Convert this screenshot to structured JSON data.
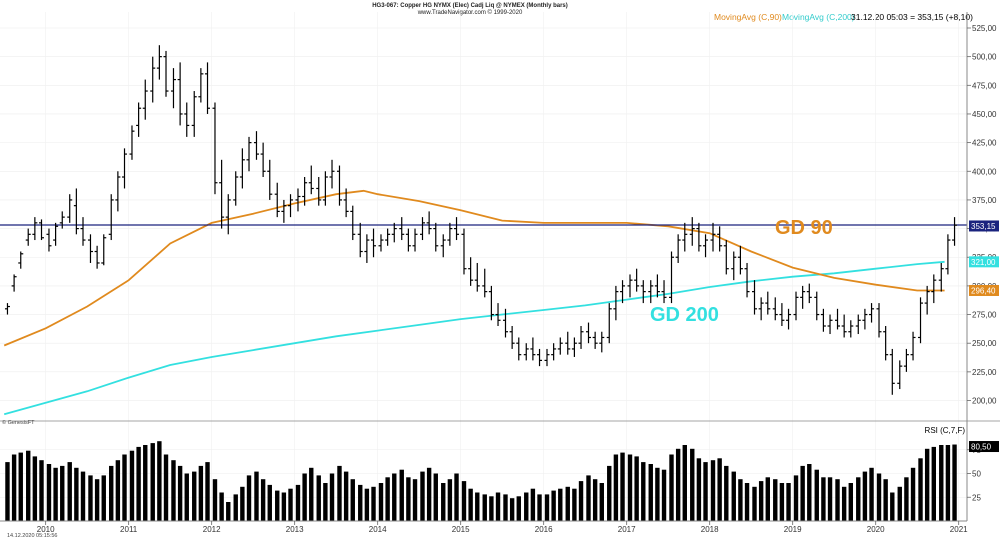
{
  "header": {
    "title": "HG3-067: Copper HG NYMX (Elec) Cadj Liq @ NYMEX (Monthly bars)",
    "source": "www.TradeNavigator.com © 1999-2020"
  },
  "legend": {
    "ma90_label": "MovingAvg (C,90)",
    "ma200_label": "MovingAvg (C,200)",
    "readout": "31.12.20 05:03 = 353,15 (+8,10)"
  },
  "annotations": {
    "gd90": "GD 90",
    "gd200": "GD 200",
    "brand": "© GenesisFT",
    "timestamp": "14.12.2020 05:15:56"
  },
  "colors": {
    "ma90": "#e08a1e",
    "ma200": "#33e0e0",
    "hline": "#1a237e",
    "bars": "#000000",
    "badge_price": "#1a237e",
    "badge_rsi": "#000000"
  },
  "chart_data": [
    {
      "type": "ohlc",
      "series": [
        {
          "name": "MovingAvg (C,90)",
          "x": [
            2009.5,
            2010.0,
            2010.5,
            2011.0,
            2011.5,
            2012.0,
            2012.5,
            2013.0,
            2013.5,
            2013.83,
            2014.0,
            2014.5,
            2015.0,
            2015.5,
            2016.0,
            2016.5,
            2017.0,
            2017.5,
            2018.0,
            2018.5,
            2019.0,
            2019.5,
            2020.0,
            2020.5,
            2020.83
          ],
          "values": [
            248,
            263,
            282,
            305,
            337,
            355,
            363,
            372,
            380,
            383,
            380,
            374,
            366,
            357,
            355,
            355,
            355,
            352,
            346,
            330,
            316,
            307,
            301,
            296,
            296
          ]
        },
        {
          "name": "MovingAvg (C,200)",
          "x": [
            2009.5,
            2010.0,
            2010.5,
            2011.0,
            2011.5,
            2012.0,
            2012.5,
            2013.0,
            2013.5,
            2014.0,
            2014.5,
            2015.0,
            2015.5,
            2016.0,
            2016.5,
            2017.0,
            2017.5,
            2018.0,
            2018.5,
            2019.0,
            2019.5,
            2020.0,
            2020.5,
            2020.83
          ],
          "values": [
            188,
            198,
            208,
            220,
            231,
            238,
            244,
            250,
            256,
            261,
            266,
            271,
            275,
            279,
            283,
            288,
            293,
            299,
            304,
            308,
            311,
            315,
            319,
            321
          ]
        }
      ],
      "bars_values": [
        [
          2009.54,
          280,
          285,
          275,
          282
        ],
        [
          2009.62,
          300,
          310,
          295,
          308
        ],
        [
          2009.7,
          320,
          330,
          315,
          328
        ],
        [
          2009.79,
          340,
          350,
          335,
          345
        ],
        [
          2009.87,
          345,
          360,
          340,
          355
        ],
        [
          2009.95,
          355,
          358,
          340,
          342
        ],
        [
          2010.04,
          345,
          350,
          330,
          335
        ],
        [
          2010.12,
          340,
          355,
          335,
          352
        ],
        [
          2010.2,
          355,
          365,
          350,
          360
        ],
        [
          2010.29,
          360,
          380,
          355,
          375
        ],
        [
          2010.37,
          370,
          385,
          345,
          350
        ],
        [
          2010.45,
          350,
          360,
          335,
          340
        ],
        [
          2010.54,
          340,
          345,
          320,
          330
        ],
        [
          2010.62,
          330,
          335,
          315,
          320
        ],
        [
          2010.7,
          320,
          345,
          318,
          342
        ],
        [
          2010.79,
          345,
          380,
          340,
          375
        ],
        [
          2010.87,
          375,
          400,
          365,
          395
        ],
        [
          2010.95,
          395,
          420,
          385,
          415
        ],
        [
          2011.04,
          415,
          440,
          410,
          435
        ],
        [
          2011.12,
          440,
          460,
          430,
          455
        ],
        [
          2011.2,
          455,
          480,
          445,
          470
        ],
        [
          2011.29,
          470,
          500,
          460,
          490
        ],
        [
          2011.37,
          490,
          510,
          480,
          500
        ],
        [
          2011.45,
          500,
          505,
          465,
          470
        ],
        [
          2011.54,
          470,
          490,
          455,
          480
        ],
        [
          2011.62,
          480,
          495,
          440,
          450
        ],
        [
          2011.7,
          450,
          460,
          430,
          440
        ],
        [
          2011.79,
          440,
          470,
          430,
          465
        ],
        [
          2011.87,
          465,
          490,
          460,
          485
        ],
        [
          2011.95,
          485,
          495,
          450,
          455
        ],
        [
          2012.04,
          455,
          460,
          380,
          390
        ],
        [
          2012.12,
          390,
          410,
          350,
          360
        ],
        [
          2012.2,
          360,
          380,
          345,
          375
        ],
        [
          2012.29,
          375,
          400,
          370,
          395
        ],
        [
          2012.37,
          395,
          420,
          385,
          410
        ],
        [
          2012.45,
          410,
          430,
          400,
          425
        ],
        [
          2012.54,
          425,
          435,
          410,
          415
        ],
        [
          2012.62,
          415,
          425,
          395,
          400
        ],
        [
          2012.7,
          400,
          410,
          375,
          380
        ],
        [
          2012.79,
          380,
          390,
          360,
          365
        ],
        [
          2012.87,
          365,
          375,
          355,
          370
        ],
        [
          2012.95,
          370,
          380,
          360,
          375
        ],
        [
          2013.04,
          375,
          385,
          365,
          378
        ],
        [
          2013.12,
          378,
          395,
          370,
          390
        ],
        [
          2013.2,
          390,
          405,
          380,
          385
        ],
        [
          2013.29,
          385,
          395,
          370,
          375
        ],
        [
          2013.37,
          375,
          400,
          370,
          395
        ],
        [
          2013.45,
          395,
          410,
          385,
          400
        ],
        [
          2013.54,
          400,
          405,
          370,
          375
        ],
        [
          2013.62,
          375,
          385,
          360,
          365
        ],
        [
          2013.7,
          365,
          370,
          340,
          345
        ],
        [
          2013.79,
          345,
          355,
          325,
          330
        ],
        [
          2013.87,
          330,
          345,
          320,
          340
        ],
        [
          2013.95,
          340,
          350,
          325,
          335
        ],
        [
          2014.04,
          335,
          345,
          330,
          340
        ],
        [
          2014.12,
          340,
          350,
          335,
          345
        ],
        [
          2014.2,
          345,
          355,
          338,
          350
        ],
        [
          2014.29,
          350,
          360,
          340,
          345
        ],
        [
          2014.37,
          345,
          350,
          330,
          335
        ],
        [
          2014.45,
          335,
          350,
          330,
          345
        ],
        [
          2014.54,
          345,
          360,
          340,
          355
        ],
        [
          2014.62,
          355,
          365,
          345,
          350
        ],
        [
          2014.7,
          350,
          355,
          330,
          335
        ],
        [
          2014.79,
          335,
          345,
          325,
          340
        ],
        [
          2014.87,
          340,
          355,
          335,
          350
        ],
        [
          2014.95,
          350,
          360,
          340,
          345
        ],
        [
          2015.04,
          345,
          350,
          310,
          315
        ],
        [
          2015.12,
          315,
          325,
          300,
          305
        ],
        [
          2015.2,
          305,
          320,
          295,
          300
        ],
        [
          2015.29,
          300,
          315,
          290,
          295
        ],
        [
          2015.37,
          295,
          300,
          270,
          275
        ],
        [
          2015.45,
          275,
          285,
          265,
          270
        ],
        [
          2015.54,
          270,
          280,
          255,
          260
        ],
        [
          2015.62,
          260,
          265,
          245,
          250
        ],
        [
          2015.7,
          250,
          255,
          235,
          240
        ],
        [
          2015.79,
          240,
          250,
          235,
          245
        ],
        [
          2015.87,
          245,
          255,
          235,
          240
        ],
        [
          2015.95,
          240,
          245,
          230,
          235
        ],
        [
          2016.04,
          235,
          245,
          230,
          240
        ],
        [
          2016.12,
          240,
          250,
          235,
          245
        ],
        [
          2016.2,
          245,
          255,
          240,
          250
        ],
        [
          2016.29,
          250,
          260,
          240,
          245
        ],
        [
          2016.37,
          245,
          255,
          238,
          250
        ],
        [
          2016.45,
          250,
          265,
          245,
          260
        ],
        [
          2016.54,
          260,
          268,
          250,
          255
        ],
        [
          2016.62,
          255,
          260,
          245,
          250
        ],
        [
          2016.7,
          250,
          260,
          242,
          255
        ],
        [
          2016.79,
          255,
          285,
          250,
          280
        ],
        [
          2016.87,
          280,
          300,
          270,
          295
        ],
        [
          2016.95,
          295,
          305,
          285,
          300
        ],
        [
          2017.04,
          300,
          310,
          290,
          305
        ],
        [
          2017.12,
          305,
          315,
          295,
          300
        ],
        [
          2017.2,
          300,
          305,
          285,
          295
        ],
        [
          2017.29,
          295,
          305,
          285,
          300
        ],
        [
          2017.37,
          300,
          310,
          290,
          295
        ],
        [
          2017.45,
          295,
          305,
          285,
          290
        ],
        [
          2017.54,
          290,
          330,
          285,
          325
        ],
        [
          2017.62,
          325,
          345,
          320,
          340
        ],
        [
          2017.7,
          340,
          355,
          330,
          345
        ],
        [
          2017.79,
          345,
          360,
          335,
          350
        ],
        [
          2017.87,
          350,
          355,
          330,
          335
        ],
        [
          2017.95,
          335,
          345,
          325,
          340
        ],
        [
          2018.04,
          340,
          355,
          330,
          345
        ],
        [
          2018.12,
          345,
          352,
          330,
          335
        ],
        [
          2018.2,
          335,
          340,
          310,
          315
        ],
        [
          2018.29,
          315,
          330,
          305,
          325
        ],
        [
          2018.37,
          325,
          335,
          310,
          315
        ],
        [
          2018.45,
          315,
          320,
          290,
          295
        ],
        [
          2018.54,
          295,
          305,
          275,
          280
        ],
        [
          2018.62,
          280,
          290,
          270,
          285
        ],
        [
          2018.7,
          285,
          295,
          275,
          280
        ],
        [
          2018.79,
          280,
          290,
          270,
          275
        ],
        [
          2018.87,
          275,
          285,
          265,
          270
        ],
        [
          2018.95,
          270,
          280,
          262,
          275
        ],
        [
          2019.04,
          275,
          295,
          270,
          290
        ],
        [
          2019.12,
          290,
          300,
          280,
          295
        ],
        [
          2019.2,
          295,
          302,
          285,
          290
        ],
        [
          2019.29,
          290,
          295,
          270,
          275
        ],
        [
          2019.37,
          275,
          280,
          260,
          265
        ],
        [
          2019.45,
          265,
          275,
          258,
          270
        ],
        [
          2019.54,
          270,
          280,
          262,
          265
        ],
        [
          2019.62,
          265,
          275,
          255,
          260
        ],
        [
          2019.7,
          260,
          270,
          255,
          265
        ],
        [
          2019.79,
          265,
          275,
          258,
          270
        ],
        [
          2019.87,
          270,
          280,
          262,
          275
        ],
        [
          2019.95,
          275,
          285,
          268,
          280
        ],
        [
          2020.04,
          280,
          285,
          255,
          260
        ],
        [
          2020.12,
          260,
          265,
          235,
          240
        ],
        [
          2020.2,
          240,
          245,
          205,
          215
        ],
        [
          2020.29,
          215,
          235,
          210,
          230
        ],
        [
          2020.37,
          230,
          245,
          225,
          240
        ],
        [
          2020.45,
          240,
          260,
          235,
          255
        ],
        [
          2020.54,
          255,
          290,
          250,
          285
        ],
        [
          2020.62,
          285,
          300,
          275,
          295
        ],
        [
          2020.7,
          295,
          310,
          285,
          305
        ],
        [
          2020.79,
          305,
          320,
          295,
          315
        ],
        [
          2020.87,
          315,
          345,
          310,
          340
        ],
        [
          2020.95,
          340,
          360,
          335,
          353
        ]
      ],
      "hline_value": 353.15,
      "xlim": [
        2009.45,
        2021.1
      ],
      "ylim": [
        183,
        525
      ],
      "yticks": [
        200,
        225,
        250,
        275,
        300,
        325,
        350,
        375,
        400,
        425,
        450,
        475,
        500,
        525
      ],
      "ytick_labels": [
        "200,00",
        "225,00",
        "250,00",
        "275,00",
        "300,00",
        "325,00",
        "350,00",
        "375,00",
        "400,00",
        "425,00",
        "450,00",
        "475,00",
        "500,00",
        "525,00"
      ],
      "xticks": [
        2010,
        2011,
        2012,
        2013,
        2014,
        2015,
        2016,
        2017,
        2018,
        2019,
        2020,
        2021
      ],
      "xtick_labels": [
        "2010",
        "2011",
        "2012",
        "2013",
        "2014",
        "2015",
        "2016",
        "2017",
        "2018",
        "2019",
        "2020",
        "2021"
      ],
      "last_labels": {
        "price": "353,15",
        "ma200": "321,00",
        "ma90": "296,40"
      },
      "grid": true
    },
    {
      "type": "bar",
      "title": "RSI (C,7,F)",
      "ylim": [
        0,
        100
      ],
      "yticks": [
        25,
        50,
        75
      ],
      "ytick_labels": [
        "25",
        "50",
        "75"
      ],
      "last_label": "80,50",
      "values": [
        62,
        70,
        72,
        74,
        68,
        64,
        60,
        56,
        58,
        62,
        56,
        52,
        48,
        44,
        48,
        58,
        64,
        70,
        74,
        78,
        80,
        82,
        84,
        70,
        64,
        58,
        50,
        52,
        58,
        62,
        44,
        30,
        20,
        28,
        36,
        48,
        52,
        44,
        38,
        32,
        30,
        34,
        38,
        50,
        56,
        48,
        40,
        50,
        58,
        52,
        44,
        38,
        34,
        36,
        40,
        46,
        50,
        54,
        46,
        44,
        52,
        56,
        50,
        40,
        44,
        50,
        42,
        34,
        30,
        28,
        26,
        30,
        28,
        24,
        26,
        30,
        34,
        28,
        28,
        32,
        34,
        36,
        34,
        42,
        48,
        44,
        40,
        58,
        70,
        72,
        70,
        68,
        62,
        60,
        56,
        54,
        70,
        76,
        80,
        76,
        66,
        62,
        64,
        66,
        58,
        52,
        44,
        40,
        36,
        42,
        46,
        44,
        40,
        40,
        48,
        58,
        60,
        54,
        46,
        46,
        44,
        36,
        40,
        46,
        52,
        56,
        50,
        44,
        30,
        36,
        46,
        56,
        66,
        76,
        78,
        80,
        80,
        80.5
      ],
      "grid": true
    }
  ]
}
